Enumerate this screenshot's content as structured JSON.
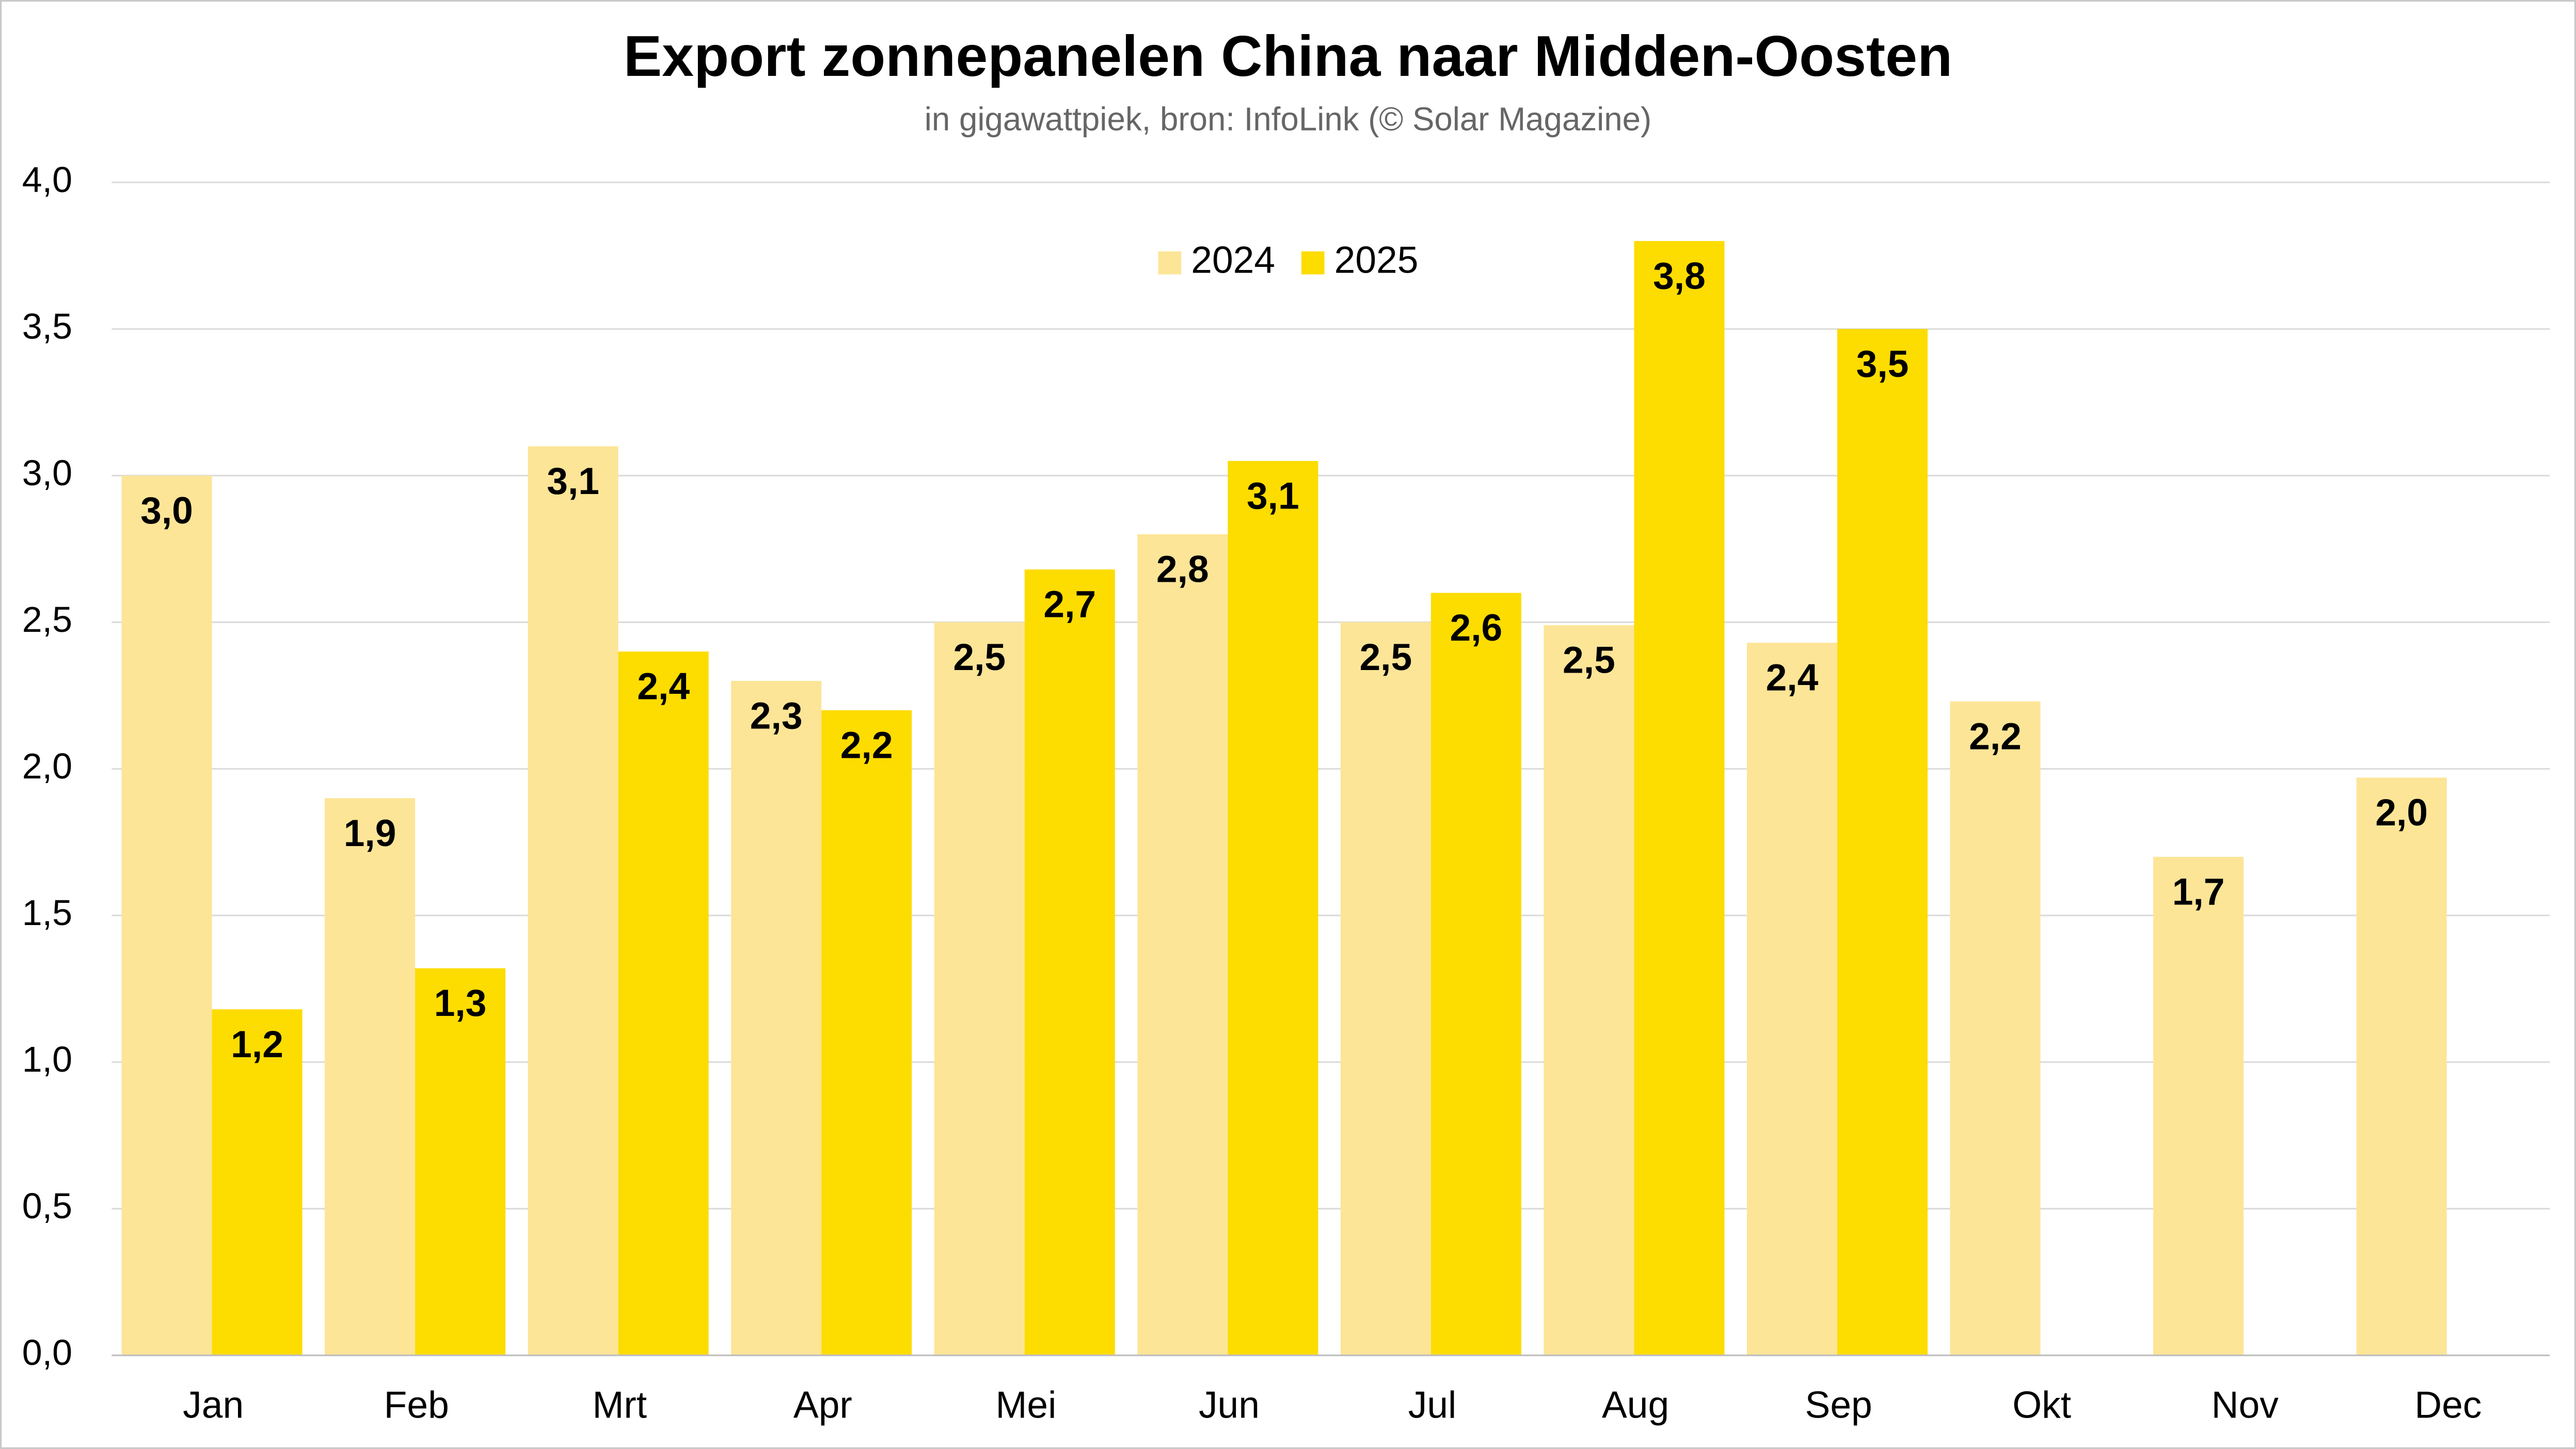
{
  "chart_data": {
    "type": "bar",
    "title": "Export zonnepanelen China naar Midden-Oosten",
    "subtitle": "in gigawattpiek, bron: InfoLink (© Solar Magazine)",
    "categories": [
      "Jan",
      "Feb",
      "Mrt",
      "Apr",
      "Mei",
      "Jun",
      "Jul",
      "Aug",
      "Sep",
      "Okt",
      "Nov",
      "Dec"
    ],
    "series": [
      {
        "name": "2024",
        "color": "#fce597",
        "values": [
          3.0,
          1.9,
          3.1,
          2.3,
          2.5,
          2.8,
          2.5,
          2.49,
          2.43,
          2.23,
          1.7,
          1.97
        ],
        "value_labels": [
          "3,0",
          "1,9",
          "3,1",
          "2,3",
          "2,5",
          "2,8",
          "2,5",
          "2,5",
          "2,4",
          "2,2",
          "1,7",
          "2,0"
        ]
      },
      {
        "name": "2025",
        "color": "#fddc00",
        "values": [
          1.18,
          1.32,
          2.4,
          2.2,
          2.68,
          3.05,
          2.6,
          3.8,
          3.5,
          null,
          null,
          null
        ],
        "value_labels": [
          "1,2",
          "1,3",
          "2,4",
          "2,2",
          "2,7",
          "3,1",
          "2,6",
          "3,8",
          "3,5",
          null,
          null,
          null
        ]
      }
    ],
    "ylim": [
      0,
      4
    ],
    "yticks": [
      {
        "value": 0,
        "label": "0,0"
      },
      {
        "value": 0.5,
        "label": "0,5"
      },
      {
        "value": 1,
        "label": "1,0"
      },
      {
        "value": 1.5,
        "label": "1,5"
      },
      {
        "value": 2,
        "label": "2,0"
      },
      {
        "value": 2.5,
        "label": "2,5"
      },
      {
        "value": 3,
        "label": "3,0"
      },
      {
        "value": 3.5,
        "label": "3,5"
      },
      {
        "value": 4,
        "label": "4,0"
      }
    ],
    "grid": true,
    "legend": "top"
  }
}
